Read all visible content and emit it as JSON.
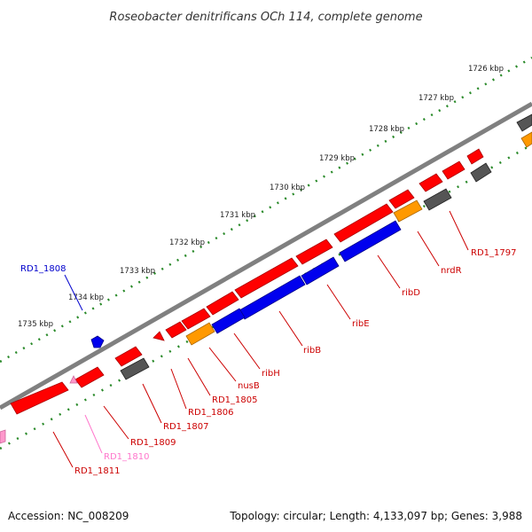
{
  "title": "Roseobacter denitrificans OCh 114, complete genome",
  "accession": "Accession: NC_008209",
  "summary": "Topology: circular; Length: 4,133,097 bp; Genes: 3,988",
  "colors": {
    "backbone": "#808080",
    "tick_dots": "#2a8a2a",
    "gene_red": "#ff0000",
    "gene_blue": "#0000ee",
    "gene_orange": "#ff9900",
    "gene_gray": "#555555",
    "gene_pink": "#ff99cc",
    "label_red": "#cc0000",
    "label_blue": "#0000cc",
    "label_pink": "#ff77cc"
  },
  "scale_labels": [
    "1726 kbp",
    "1727 kbp",
    "1728 kbp",
    "1729 kbp",
    "1730 kbp",
    "1731 kbp",
    "1732 kbp",
    "1733 kbp",
    "1734 kbp",
    "1735 kbp"
  ],
  "gene_labels": [
    {
      "text": "RD1_1797",
      "color": "red"
    },
    {
      "text": "nrdR",
      "color": "red"
    },
    {
      "text": "ribD",
      "color": "red"
    },
    {
      "text": "ribE",
      "color": "red"
    },
    {
      "text": "ribB",
      "color": "red"
    },
    {
      "text": "ribH",
      "color": "red"
    },
    {
      "text": "nusB",
      "color": "red"
    },
    {
      "text": "RD1_1805",
      "color": "red"
    },
    {
      "text": "RD1_1806",
      "color": "red"
    },
    {
      "text": "RD1_1807",
      "color": "red"
    },
    {
      "text": "RD1_1809",
      "color": "red"
    },
    {
      "text": "RD1_1810",
      "color": "pink"
    },
    {
      "text": "RD1_1811",
      "color": "red"
    },
    {
      "text": "RD1_1808",
      "color": "blue"
    }
  ]
}
